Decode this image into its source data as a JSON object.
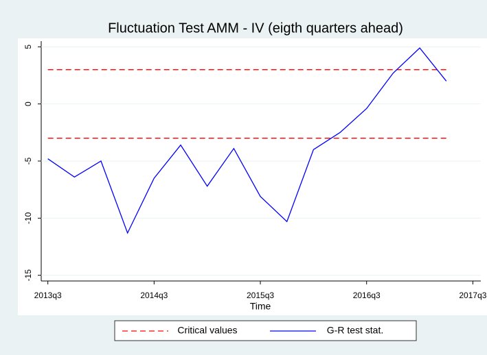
{
  "chart_data": {
    "type": "line",
    "title": "Fluctuation Test AMM - IV  (eigth quarters ahead)",
    "x_label": "Time",
    "x": [
      214,
      215,
      216,
      217,
      218,
      219,
      220,
      221,
      222,
      223,
      224,
      225,
      226,
      227,
      228,
      229
    ],
    "series": [
      {
        "name": "Critical values",
        "color": "#ff0000",
        "style": "dashed",
        "levels": [
          3,
          -3
        ]
      },
      {
        "name": "G-R test stat.",
        "color": "#0000ff",
        "style": "solid",
        "values": [
          -4.8,
          -6.4,
          -5.0,
          -11.3,
          -6.5,
          -3.6,
          -7.2,
          -3.9,
          -8.1,
          -10.3,
          -4.0,
          -2.5,
          -0.4,
          2.7,
          4.9,
          2.0
        ]
      }
    ],
    "xlim": [
      213.75,
      230.3
    ],
    "xticks": [
      {
        "value": 214,
        "label": "2013q3"
      },
      {
        "value": 218,
        "label": "2014q3"
      },
      {
        "value": 222,
        "label": "2015q3"
      },
      {
        "value": 226,
        "label": "2016q3"
      },
      {
        "value": 230,
        "label": "2017q3"
      }
    ],
    "ylim": [
      -15.5,
      5.5
    ],
    "yticks": [
      -15,
      -10,
      -5,
      0,
      5
    ],
    "grid": true,
    "legend": "bottom"
  }
}
